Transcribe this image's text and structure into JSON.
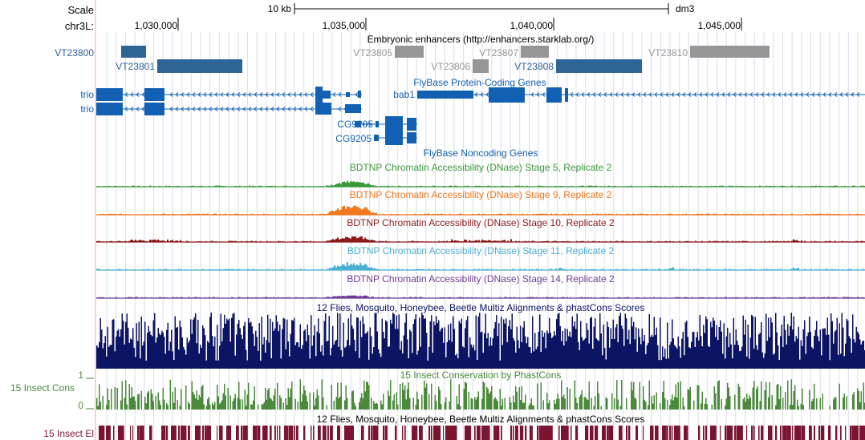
{
  "ruler": {
    "scale_label": "Scale",
    "scale_bar_label": "10 kb",
    "assembly": "dm3",
    "chrom_label": "chr3L:",
    "ticks": [
      "1,030,000",
      "1,035,000",
      "1,040,000",
      "1,045,000"
    ]
  },
  "enhancers": {
    "title": "Embryonic enhancers (http://enhancers.starklab.org/)",
    "side_label": "VT23800",
    "items": [
      {
        "name": "VT23800",
        "label": ""
      },
      {
        "name": "VT23801",
        "label": "VT23801"
      },
      {
        "name": "VT23805",
        "label": "VT23805"
      },
      {
        "name": "VT23806",
        "label": "VT23806"
      },
      {
        "name": "VT23807",
        "label": "VT23807"
      },
      {
        "name": "VT23808",
        "label": "VT23808"
      },
      {
        "name": "VT23810",
        "label": "VT23810"
      }
    ]
  },
  "genes": {
    "coding_title": "FlyBase Protein-Coding Genes",
    "noncoding_title": "FlyBase Noncoding Genes",
    "side_labels": [
      "trio",
      "trio"
    ],
    "bab1_label": "bab1",
    "cg9205_labels": [
      "CG9205",
      "CG9205"
    ]
  },
  "dnase_tracks": [
    {
      "title": "BDTNP Chromatin Accessibility (DNase) Stage 5, Replicate 2",
      "color": "#3a9a3a"
    },
    {
      "title": "BDTNP Chromatin Accessibility (DNase) Stage 9, Replicate 2",
      "color": "#f0781e"
    },
    {
      "title": "BDTNP Chromatin Accessibility (DNase) Stage 10, Replicate 2",
      "color": "#8c1a1a"
    },
    {
      "title": "BDTNP Chromatin Accessibility (DNase) Stage 11, Replicate 2",
      "color": "#4bafd2"
    },
    {
      "title": "BDTNP Chromatin Accessibility (DNase) Stage 14, Replicate 2",
      "color": "#6e3c96"
    }
  ],
  "multiz": {
    "title": "12 Flies, Mosquito, Honeybee, Beetle Multiz Alignments & phastCons Scores",
    "color": "#0c1464"
  },
  "cons": {
    "title": "15 Insect Conservation by PhastCons",
    "side_label": "15 Insect Cons",
    "ymax": "1",
    "ymin": "0",
    "color": "#4a8a3a"
  },
  "elements": {
    "title": "12 Flies, Mosquito, Honeybee, Beetle Multiz Alignments & phastCons Scores",
    "side_label": "15 Insect El",
    "color": "#7a1430"
  },
  "colors": {
    "gene_blue": "#1260b4",
    "enhancer_blue": "#2e6496",
    "enhancer_gray": "#969696",
    "grid": "#dcdcf0"
  }
}
